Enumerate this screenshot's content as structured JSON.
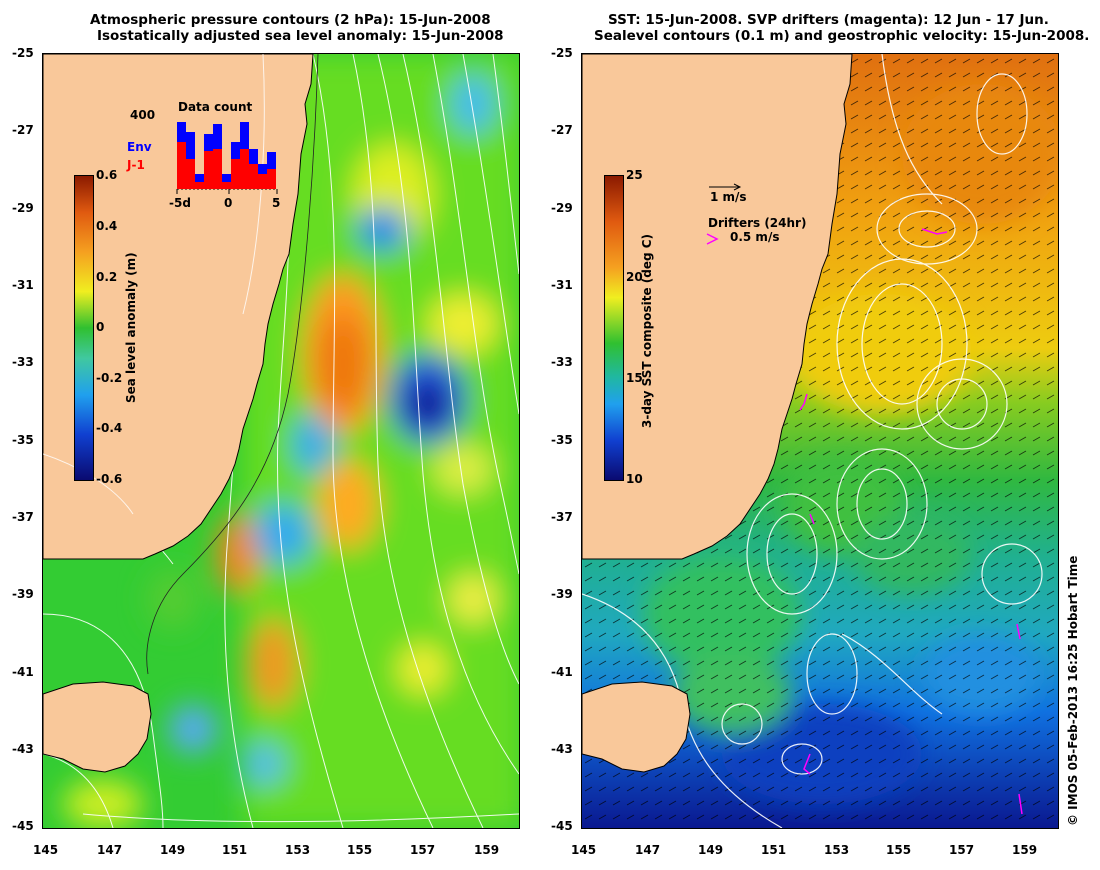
{
  "left_panel": {
    "title_line1": "Atmospheric pressure contours (2 hPa): 15-Jun-2008",
    "title_line2": "Isostatically adjusted sea level anomaly: 15-Jun-2008",
    "colorbar": {
      "label": "Sea level anomaly (m)",
      "ticks": [
        "0.6",
        "0.4",
        "0.2",
        "0",
        "-0.2",
        "-0.4",
        "-0.6"
      ],
      "range": [
        -0.6,
        0.6
      ]
    },
    "inset": {
      "title": "Data count",
      "ymax_label": "400",
      "legend_env": "Env",
      "legend_j1": "J-1",
      "x_ticks": [
        "-5d",
        "0",
        "5"
      ],
      "env_color": "#0000ff",
      "j1_color": "#ff0000"
    }
  },
  "right_panel": {
    "title_line1": "SST: 15-Jun-2008. SVP drifters (magenta): 12 Jun - 17 Jun.",
    "title_line2": "Sealevel contours (0.1 m) and geostrophic velocity: 15-Jun-2008.",
    "colorbar": {
      "label": "3-day SST composite (deg C)",
      "ticks": [
        "25",
        "20",
        "15",
        "10"
      ],
      "range": [
        10,
        25
      ]
    },
    "velocity_scale_label": "1 m/s",
    "drifter_legend_title": "Drifters (24hr)",
    "drifter_legend_value": "0.5 m/s",
    "drifter_color": "#ff00ff"
  },
  "axes": {
    "lat_ticks": [
      "-25",
      "-27",
      "-29",
      "-31",
      "-33",
      "-35",
      "-37",
      "-39",
      "-41",
      "-43",
      "-45"
    ],
    "lon_ticks": [
      "145",
      "147",
      "149",
      "151",
      "153",
      "155",
      "157",
      "159"
    ],
    "lat_range": [
      -45,
      -25
    ],
    "lon_range": [
      145,
      160.5
    ]
  },
  "credit": "© IMOS 05-Feb-2013 16:25 Hobart Time",
  "colors": {
    "land": "#f9c89a",
    "coast": "#000000",
    "contour": "#ffffff"
  }
}
